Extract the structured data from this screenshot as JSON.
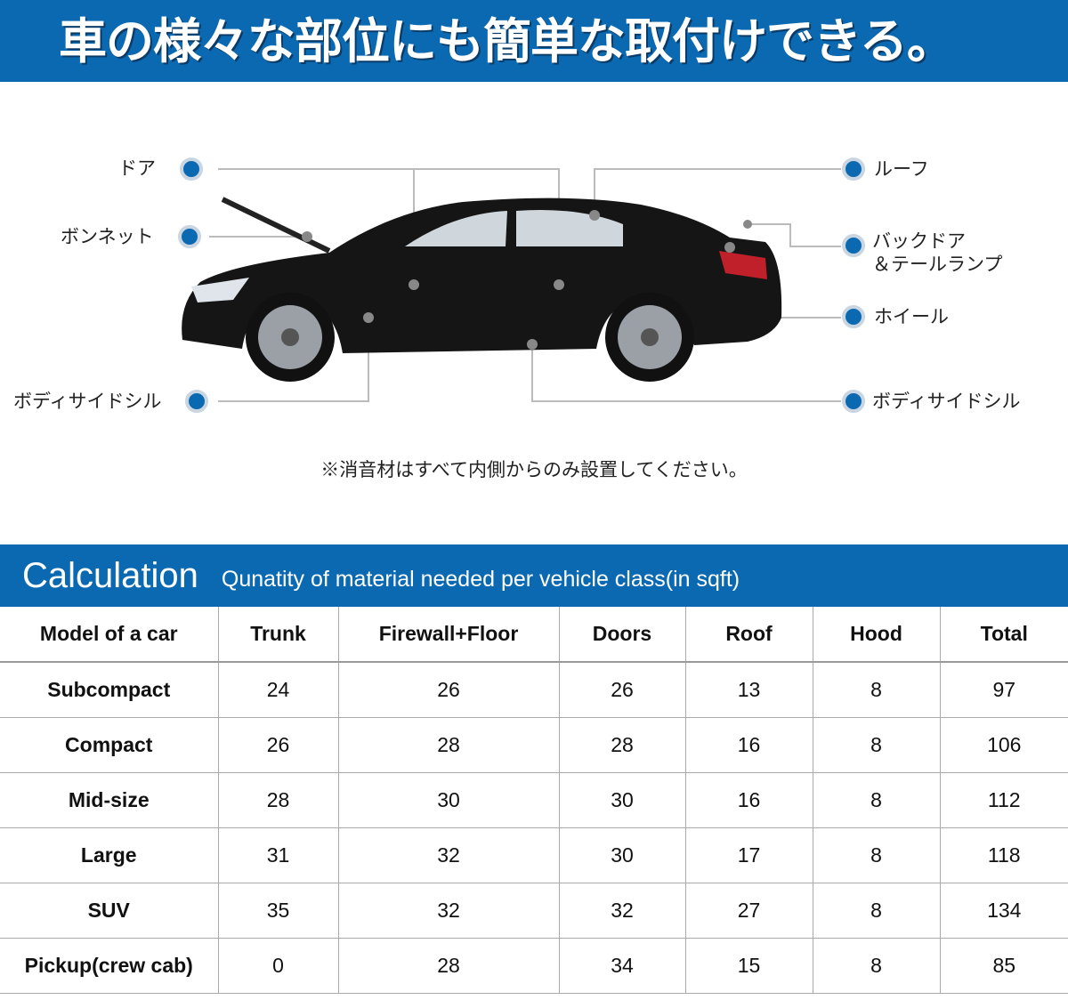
{
  "banner": {
    "title": "車の様々な部位にも簡単な取付けできる。"
  },
  "diagram": {
    "labels": {
      "door": "ドア",
      "bonnet": "ボンネット",
      "body_side_sill_left": "ボディサイドシル",
      "roof": "ルーフ",
      "back_door_line1": "バックドア",
      "back_door_line2": "＆テールランプ",
      "wheel": "ホイール",
      "body_side_sill_right": "ボディサイドシル"
    },
    "note": "※消音材はすべて内側からのみ設置してください。",
    "accent_color": "#0b69b1"
  },
  "calculation": {
    "title": "Calculation",
    "subtitle": "Qunatity of material needed per vehicle class(in sqft)",
    "headers": [
      "Model of a car",
      "Trunk",
      "Firewall+Floor",
      "Doors",
      "Roof",
      "Hood",
      "Total"
    ],
    "rows": [
      [
        "Subcompact",
        "24",
        "26",
        "26",
        "13",
        "8",
        "97"
      ],
      [
        "Compact",
        "26",
        "28",
        "28",
        "16",
        "8",
        "106"
      ],
      [
        "Mid-size",
        "28",
        "30",
        "30",
        "16",
        "8",
        "112"
      ],
      [
        "Large",
        "31",
        "32",
        "30",
        "17",
        "8",
        "118"
      ],
      [
        "SUV",
        "35",
        "32",
        "32",
        "27",
        "8",
        "134"
      ],
      [
        "Pickup(crew cab)",
        "0",
        "28",
        "34",
        "15",
        "8",
        "85"
      ]
    ]
  }
}
